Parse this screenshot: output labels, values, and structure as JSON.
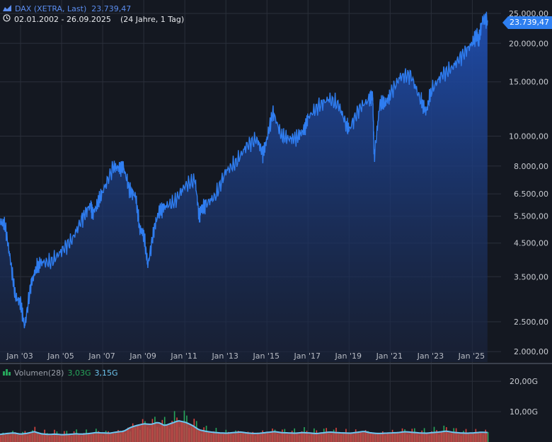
{
  "legend": {
    "instrument": "DAX (XETRA, Last)",
    "last_value": "23.739,47",
    "date_range": "02.01.2002 - 26.09.2025",
    "span": "(24 Jahre, 1 Tag)"
  },
  "last_badge": "23.739,47",
  "volume_legend": {
    "label": "Volumen(28)",
    "value1": "3,03G",
    "value2": "3,15G"
  },
  "colors": {
    "background": "#141821",
    "line": "#2f7df0",
    "area_top": "#1e4aa8",
    "grid": "#2a2f3a",
    "volume_up": "#26a65b",
    "volume_down": "#d9453f",
    "volume_avg": "#6ec6f0"
  },
  "chart_data": [
    {
      "type": "area",
      "series": [
        {
          "name": "DAX (XETRA, Last)",
          "x": [
            2002.0,
            2002.25,
            2002.5,
            2002.75,
            2003.0,
            2003.2,
            2003.5,
            2003.75,
            2004.0,
            2004.5,
            2005.0,
            2005.5,
            2006.0,
            2006.4,
            2006.5,
            2006.75,
            2007.0,
            2007.5,
            2007.8,
            2008.0,
            2008.3,
            2008.6,
            2008.8,
            2009.0,
            2009.2,
            2009.5,
            2009.75,
            2010.0,
            2010.5,
            2011.0,
            2011.5,
            2011.7,
            2011.8,
            2012.0,
            2012.5,
            2013.0,
            2013.5,
            2014.0,
            2014.5,
            2014.8,
            2015.0,
            2015.3,
            2015.7,
            2016.1,
            2016.5,
            2016.8,
            2017.0,
            2017.5,
            2018.0,
            2018.5,
            2018.9,
            2019.0,
            2019.5,
            2020.0,
            2020.15,
            2020.22,
            2020.5,
            2020.75,
            2021.0,
            2021.5,
            2022.0,
            2022.5,
            2022.75,
            2023.0,
            2023.5,
            2024.0,
            2024.5,
            2025.0,
            2025.25,
            2025.3,
            2025.5,
            2025.74
          ],
          "values": [
            5300,
            5100,
            4000,
            3000,
            2900,
            2400,
            3300,
            3700,
            3900,
            3900,
            4250,
            4600,
            5400,
            6000,
            5600,
            6000,
            6600,
            7900,
            7900,
            8000,
            6700,
            6400,
            5000,
            4800,
            3800,
            5000,
            5700,
            5900,
            6100,
            6900,
            7200,
            5500,
            5800,
            6000,
            6400,
            7700,
            8200,
            9300,
            9800,
            8800,
            9800,
            12000,
            10000,
            9800,
            9900,
            10500,
            11500,
            12500,
            13200,
            12600,
            10700,
            10500,
            12300,
            13200,
            13700,
            8500,
            12800,
            12700,
            13700,
            15600,
            15800,
            13000,
            12000,
            14000,
            15800,
            16600,
            18300,
            20000,
            21500,
            20000,
            24000,
            23739.47
          ]
        }
      ],
      "xlabel": "",
      "ylabel": "",
      "ylim": [
        1850,
        26500
      ],
      "yscale": "log",
      "xlim": [
        2002.0,
        2026.4
      ],
      "y_ticks": [
        "2.000,00",
        "2.500,00",
        "3.500,00",
        "4.500,00",
        "5.500,00",
        "6.500,00",
        "8.000,00",
        "10.000,00",
        "15.000,00",
        "20.000,00",
        "25.000,00"
      ],
      "x_ticks": [
        "Jan '03",
        "Jan '05",
        "Jan '07",
        "Jan '09",
        "Jan '11",
        "Jan '13",
        "Jan '15",
        "Jan '17",
        "Jan '19",
        "Jan '21",
        "Jan '23",
        "Jan '25"
      ],
      "grid": true
    },
    {
      "type": "bar",
      "series": [
        {
          "name": "Volumen(28)",
          "values": [
            2.5,
            2.8,
            3.0,
            2.6,
            2.9,
            3.4,
            2.7,
            2.5,
            2.6,
            2.4,
            2.5,
            2.7,
            2.6,
            2.8,
            3.1,
            3.0,
            2.9,
            3.3,
            3.5,
            4.8,
            5.5,
            6.0,
            5.8,
            6.5,
            5.4,
            6.2,
            7.0,
            6.5,
            5.5,
            4.0,
            3.5,
            3.2,
            3.0,
            2.9,
            3.1,
            3.3,
            3.0,
            2.8,
            2.9,
            3.2,
            3.4,
            3.1,
            3.0,
            2.9,
            3.1,
            3.0,
            2.8,
            3.0,
            3.3,
            3.1,
            3.0,
            2.9,
            3.2,
            3.5,
            3.0,
            2.8,
            2.9,
            3.0,
            3.1,
            3.4,
            3.2,
            3.0,
            2.9,
            3.1,
            3.3,
            3.6,
            3.2,
            3.0,
            2.9,
            3.0,
            3.2,
            3.15
          ]
        }
      ],
      "ylim": [
        0,
        24
      ],
      "y_ticks": [
        "10,00G",
        "20,00G"
      ],
      "grid": true
    }
  ]
}
